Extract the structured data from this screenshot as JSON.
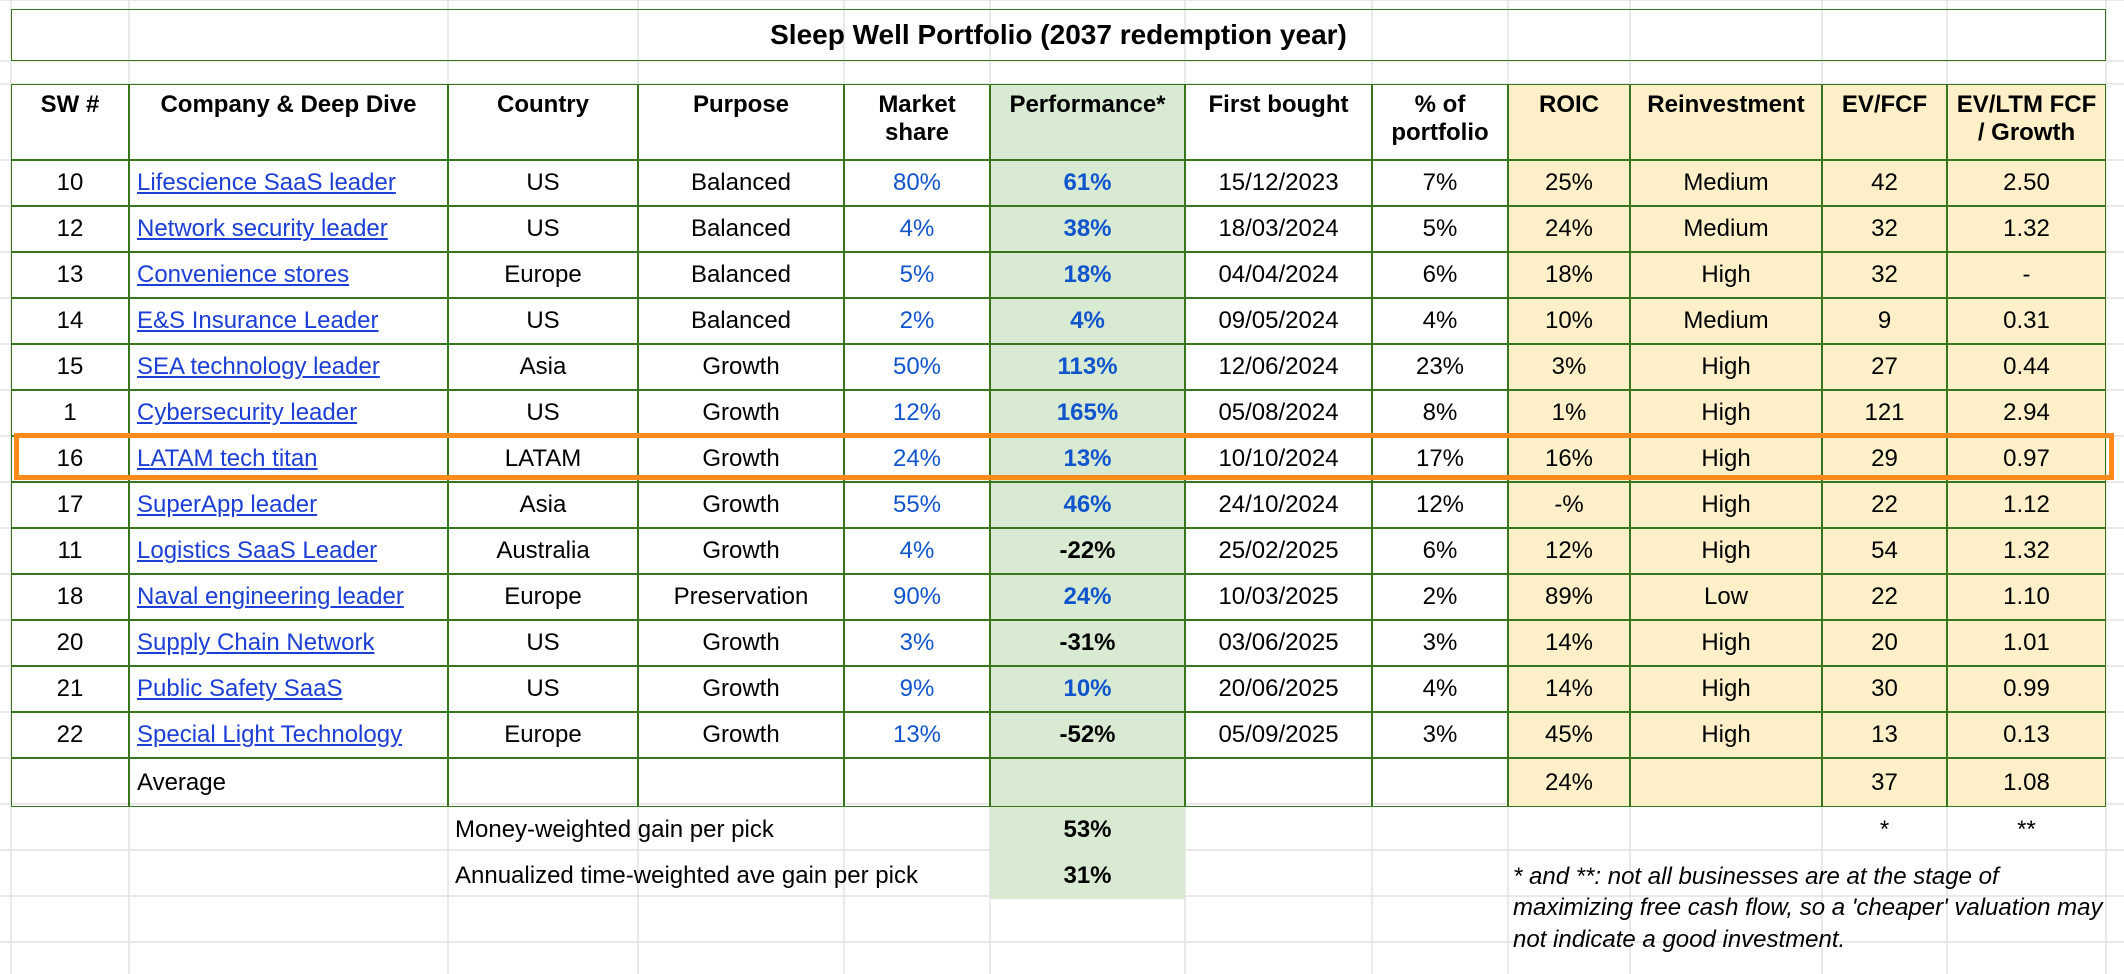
{
  "title": "Sleep Well Portfolio (2037 redemption year)",
  "header": [
    "SW #",
    "Company & Deep Dive",
    "Country",
    "Purpose",
    "Market\nshare",
    "Performance*",
    "First bought",
    "% of\nportfolio",
    "ROIC",
    "Reinvestment",
    "EV/FCF",
    "EV/LTM FCF\n/ Growth"
  ],
  "rows": [
    [
      "10",
      "Lifescience SaaS leader",
      "US",
      "Balanced",
      "80%",
      "61%",
      "15/12/2023",
      "7%",
      "25%",
      "Medium",
      "42",
      "2.50"
    ],
    [
      "12",
      "Network security leader",
      "US",
      "Balanced",
      "4%",
      "38%",
      "18/03/2024",
      "5%",
      "24%",
      "Medium",
      "32",
      "1.32"
    ],
    [
      "13",
      "Convenience stores",
      "Europe",
      "Balanced",
      "5%",
      "18%",
      "04/04/2024",
      "6%",
      "18%",
      "High",
      "32",
      "-"
    ],
    [
      "14",
      "E&S Insurance Leader",
      "US",
      "Balanced",
      "2%",
      "4%",
      "09/05/2024",
      "4%",
      "10%",
      "Medium",
      "9",
      "0.31"
    ],
    [
      "15",
      "SEA technology leader",
      "Asia",
      "Growth",
      "50%",
      "113%",
      "12/06/2024",
      "23%",
      "3%",
      "High",
      "27",
      "0.44"
    ],
    [
      "1",
      "Cybersecurity leader",
      "US",
      "Growth",
      "12%",
      "165%",
      "05/08/2024",
      "8%",
      "1%",
      "High",
      "121",
      "2.94"
    ],
    [
      "16",
      "LATAM tech titan",
      "LATAM",
      "Growth",
      "24%",
      "13%",
      "10/10/2024",
      "17%",
      "16%",
      "High",
      "29",
      "0.97"
    ],
    [
      "17",
      "SuperApp leader",
      "Asia",
      "Growth",
      "55%",
      "46%",
      "24/10/2024",
      "12%",
      "-%",
      "High",
      "22",
      "1.12"
    ],
    [
      "11",
      "Logistics SaaS Leader",
      "Australia",
      "Growth",
      "4%",
      "-22%",
      "25/02/2025",
      "6%",
      "12%",
      "High",
      "54",
      "1.32"
    ],
    [
      "18",
      "Naval engineering leader",
      "Europe",
      "Preservation",
      "90%",
      "24%",
      "10/03/2025",
      "2%",
      "89%",
      "Low",
      "22",
      "1.10"
    ],
    [
      "20",
      "Supply Chain Network",
      "US",
      "Growth",
      "3%",
      "-31%",
      "03/06/2025",
      "3%",
      "14%",
      "High",
      "20",
      "1.01"
    ],
    [
      "21",
      "Public Safety SaaS",
      "US",
      "Growth",
      "9%",
      "10%",
      "20/06/2025",
      "4%",
      "14%",
      "High",
      "30",
      "0.99"
    ],
    [
      "22",
      "Special Light Technology",
      "Europe",
      "Growth",
      "13%",
      "-52%",
      "05/09/2025",
      "3%",
      "45%",
      "High",
      "13",
      "0.13"
    ]
  ],
  "average": {
    "label": "Average",
    "roic": "24%",
    "ev_fcf": "37",
    "ev_ltm": "1.08"
  },
  "summary": [
    {
      "label": "Money-weighted gain per pick",
      "value": "53%"
    },
    {
      "label": "Annualized time-weighted ave gain per pick",
      "value": "31%"
    }
  ],
  "markers": [
    "*",
    "**"
  ],
  "footnote": "* and **: not all businesses are at the stage of maximizing free cash flow, so a 'cheaper' valuation may not indicate a good investment.",
  "highlight_row": 6
}
